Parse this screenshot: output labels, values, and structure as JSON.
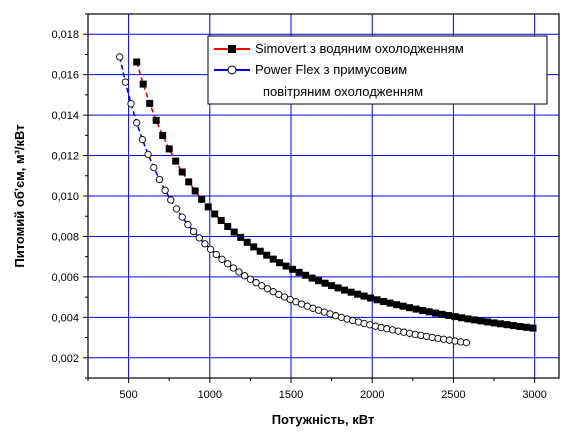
{
  "chart_data": {
    "type": "line",
    "xlabel": "Потужність, кВт",
    "ylabel": "Питомий об'єм, м³/кВт",
    "xlim": [
      250,
      3150
    ],
    "ylim": [
      0.001,
      0.019
    ],
    "x_ticks": [
      500,
      1000,
      1500,
      2000,
      2500,
      3000
    ],
    "y_ticks": [
      0.002,
      0.004,
      0.006,
      0.008,
      0.01,
      0.012,
      0.014,
      0.016,
      0.018
    ],
    "y_tick_labels": [
      "0,002",
      "0,004",
      "0,006",
      "0,008",
      "0,010",
      "0,012",
      "0,014",
      "0,016",
      "0,018"
    ],
    "grid": true,
    "grid_color": "#0000ff",
    "legend_position": "top-right",
    "series": [
      {
        "name": "Simovert з водяним охолодженням",
        "line_color": "#ff0000",
        "marker": "filled-square",
        "x_start": 550,
        "x_end": 3020,
        "x_step": 40,
        "model": {
          "a": 0.0005,
          "b": 8.87
        }
      },
      {
        "name": "Power Flex з примусовим повітряним охолодженням",
        "legend_lines": [
          "Power Flex з примусовим",
          "повітряним охолодженням"
        ],
        "line_color": "#0000ff",
        "marker": "open-circle",
        "x_start": 445,
        "x_end": 2600,
        "x_step": 35,
        "model": {
          "a": -0.0002,
          "b": 7.6
        }
      }
    ]
  }
}
